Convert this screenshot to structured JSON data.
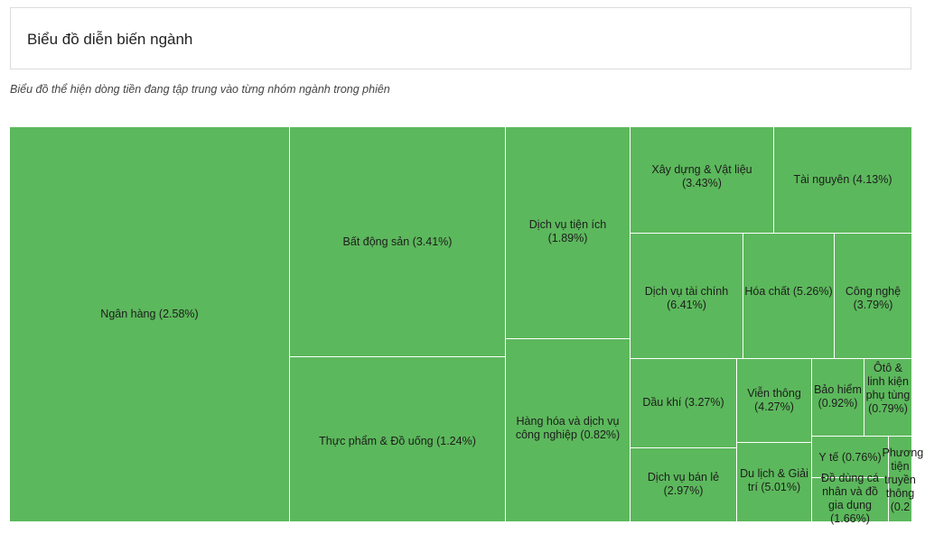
{
  "header": {
    "title": "Biểu đồ diễn biến ngành"
  },
  "subtitle": "Biểu đồ thể hiện dòng tiền đang tập trung vào từng nhóm ngành trong phiên",
  "colors": {
    "tile": "#5cb85c",
    "border": "#ffffff",
    "text": "#1d1d1d"
  },
  "chart_data": {
    "type": "treemap",
    "title": "Biểu đồ diễn biến ngành",
    "subtitle": "Biểu đồ thể hiện dòng tiền đang tập trung vào từng nhóm ngành trong phiên",
    "items": [
      {
        "name": "Ngân hàng",
        "change": "2.58%",
        "label": "Ngân hàng (2.58%)"
      },
      {
        "name": "Bất động sản",
        "change": "3.41%",
        "label": "Bất động sản (3.41%)"
      },
      {
        "name": "Thực phẩm & Đồ uống",
        "change": "1.24%",
        "label": "Thực phẩm & Đồ uống (1.24%)"
      },
      {
        "name": "Dịch vụ tiện ích",
        "change": "1.89%",
        "label": "Dịch vụ tiện ích (1.89%)"
      },
      {
        "name": "Hàng hóa và dịch vụ công nghiệp",
        "change": "0.82%",
        "label": "Hàng hóa và dịch vụ công nghiệp (0.82%)"
      },
      {
        "name": "Xây dựng & Vật liệu",
        "change": "3.43%",
        "label": "Xây dựng & Vật liệu (3.43%)"
      },
      {
        "name": "Tài nguyên",
        "change": "4.13%",
        "label": "Tài nguyên (4.13%)"
      },
      {
        "name": "Dịch vụ tài chính",
        "change": "6.41%",
        "label": "Dịch vụ tài chính (6.41%)"
      },
      {
        "name": "Hóa chất",
        "change": "5.26%",
        "label": "Hóa chất (5.26%)"
      },
      {
        "name": "Công nghệ",
        "change": "3.79%",
        "label": "Công nghệ (3.79%)"
      },
      {
        "name": "Dầu khí",
        "change": "3.27%",
        "label": "Dầu khí (3.27%)"
      },
      {
        "name": "Viễn thông",
        "change": "4.27%",
        "label": "Viễn thông (4.27%)"
      },
      {
        "name": "Bảo hiểm",
        "change": "0.92%",
        "label": "Bảo hiểm (0.92%)"
      },
      {
        "name": "Ôtô & linh kiện phụ tùng",
        "change": "0.79%",
        "label": "Ôtô & linh kiện phụ tùng (0.79%)"
      },
      {
        "name": "Dịch vụ bán lẻ",
        "change": "2.97%",
        "label": "Dịch vụ bán lẻ (2.97%)"
      },
      {
        "name": "Du lịch & Giải trí",
        "change": "5.01%",
        "label": "Du lịch & Giải trí (5.01%)"
      },
      {
        "name": "Y tế",
        "change": "0.76%",
        "label": "Y tế (0.76%)"
      },
      {
        "name": "Đồ dùng cá nhân và đồ gia dụng",
        "change": "1.66%",
        "label": "Đồ dùng cá nhân và đồ gia dụng (1.66%)"
      },
      {
        "name": "Phương tiện truyền thông",
        "change": "0.2",
        "label": "Phương tiện truyền thông (0.2"
      }
    ]
  }
}
